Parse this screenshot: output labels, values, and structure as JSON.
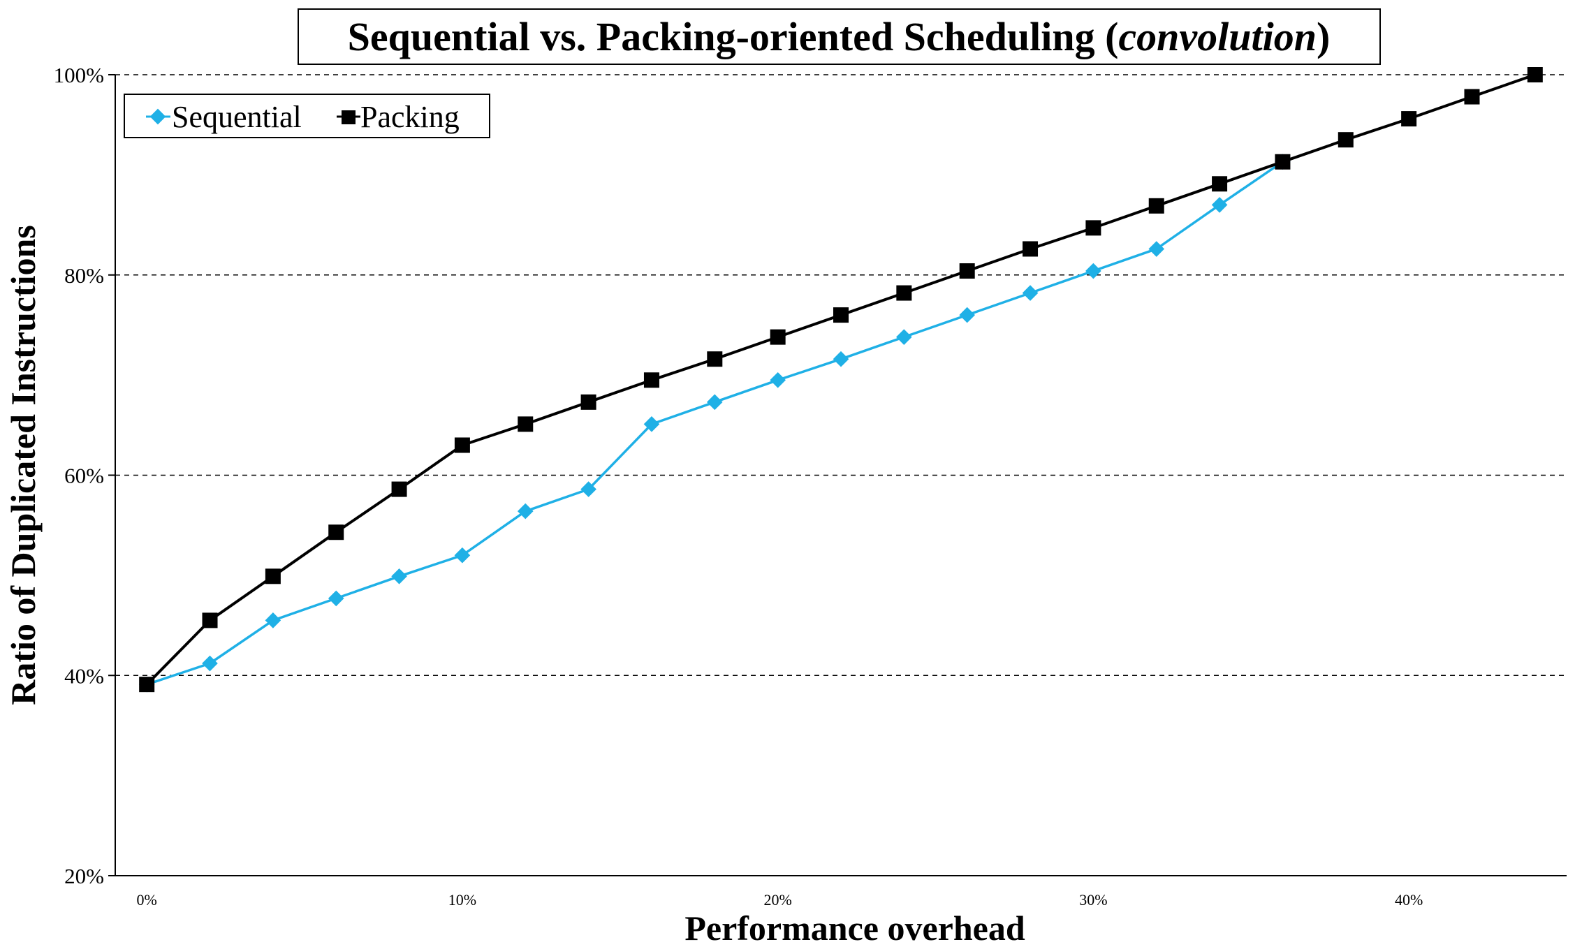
{
  "chart_data": {
    "type": "line",
    "title": {
      "prefix": "Sequential vs. Packing-oriented Scheduling (",
      "italic": "convolution",
      "suffix": ")"
    },
    "xlabel": "Performance overhead",
    "ylabel": "Ratio of Duplicated Instructions",
    "xlim": [
      -1,
      45
    ],
    "ylim": [
      20,
      100
    ],
    "xticks": [
      0,
      10,
      20,
      30,
      40
    ],
    "xtick_labels": [
      "0%",
      "10%",
      "20%",
      "30%",
      "40%"
    ],
    "yticks": [
      20,
      40,
      60,
      80,
      100
    ],
    "ytick_labels": [
      "20%",
      "40%",
      "60%",
      "80%",
      "100%"
    ],
    "grid": "horizontal dashed",
    "legend_position": "top-left",
    "series": [
      {
        "name": "Sequential",
        "color": "#1fb0e6",
        "marker": "diamond",
        "x": [
          0,
          2,
          4,
          6,
          8,
          10,
          12,
          14,
          16,
          18,
          20,
          22,
          24,
          26,
          28,
          30,
          32,
          34,
          36
        ],
        "values": [
          39.1,
          41.2,
          45.5,
          47.7,
          49.9,
          52.0,
          56.4,
          58.6,
          65.1,
          67.3,
          69.5,
          71.6,
          73.8,
          76.0,
          78.2,
          80.4,
          82.6,
          87.0,
          91.3
        ]
      },
      {
        "name": "Packing",
        "color": "#000000",
        "marker": "square",
        "x": [
          0,
          2,
          4,
          6,
          8,
          10,
          12,
          14,
          16,
          18,
          20,
          22,
          24,
          26,
          28,
          30,
          32,
          34,
          36,
          38,
          40,
          42,
          44
        ],
        "values": [
          39.1,
          45.5,
          49.9,
          54.3,
          58.6,
          63.0,
          65.1,
          67.3,
          69.5,
          71.6,
          73.8,
          76.0,
          78.2,
          80.4,
          82.6,
          84.7,
          86.9,
          89.1,
          91.3,
          93.5,
          95.6,
          97.8,
          100.0
        ]
      }
    ]
  }
}
